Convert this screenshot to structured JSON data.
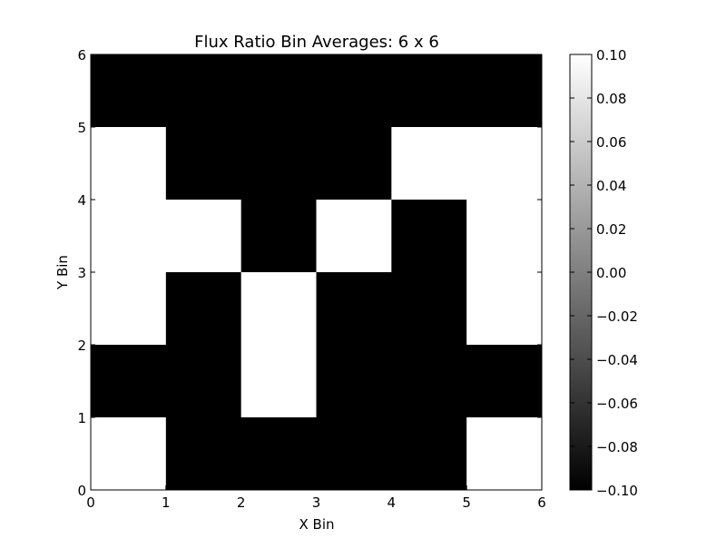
{
  "chart_data": {
    "type": "heatmap",
    "title": "Flux Ratio Bin Averages: 6 x 6",
    "xlabel": "X Bin",
    "ylabel": "Y Bin",
    "xlim": [
      0,
      6
    ],
    "ylim": [
      0,
      6
    ],
    "x_ticks": [
      "0",
      "1",
      "2",
      "3",
      "4",
      "5",
      "6"
    ],
    "y_ticks": [
      "0",
      "1",
      "2",
      "3",
      "4",
      "5",
      "6"
    ],
    "colormap": "gray",
    "color_low": "#000000",
    "color_high": "#ffffff",
    "vmin": -0.1,
    "vmax": 0.1,
    "colorbar_ticks": [
      "0.10",
      "0.08",
      "0.06",
      "0.04",
      "0.02",
      "0.00",
      "−0.02",
      "−0.04",
      "−0.06",
      "−0.08",
      "−0.10"
    ],
    "rows_top_to_bottom": [
      [
        -0.1,
        -0.1,
        -0.1,
        -0.1,
        -0.1,
        -0.1
      ],
      [
        0.1,
        -0.1,
        -0.1,
        -0.1,
        0.1,
        0.1
      ],
      [
        0.1,
        0.1,
        -0.1,
        0.1,
        -0.1,
        0.1
      ],
      [
        0.1,
        -0.1,
        0.1,
        -0.1,
        -0.1,
        0.1
      ],
      [
        -0.1,
        -0.1,
        0.1,
        -0.1,
        -0.1,
        -0.1
      ],
      [
        0.1,
        -0.1,
        -0.1,
        -0.1,
        -0.1,
        0.1
      ]
    ]
  }
}
